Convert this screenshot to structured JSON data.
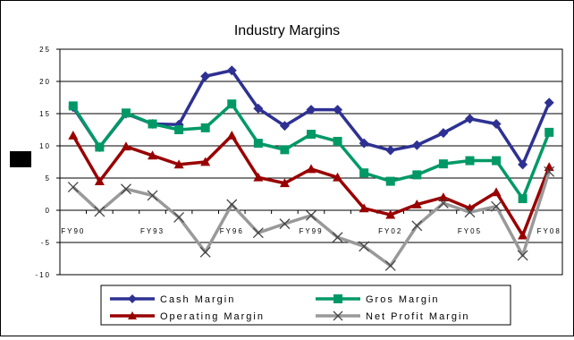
{
  "chart_data": {
    "type": "line",
    "title": "Industry Margins",
    "x": [
      "FY90",
      "FY91",
      "FY92",
      "FY93",
      "FY94",
      "FY95",
      "FY96",
      "FY97",
      "FY98",
      "FY99",
      "FY00",
      "FY01",
      "FY02",
      "FY03",
      "FY04",
      "FY05",
      "FY06",
      "FY07",
      "FY08"
    ],
    "x_tick_labels": [
      "FY90",
      "FY93",
      "FY96",
      "FY99",
      "FY02",
      "FY05",
      "FY08"
    ],
    "ylim": [
      -10,
      25
    ],
    "y_ticks": [
      "-10",
      "-5",
      "0",
      "5",
      "10",
      "15",
      "20",
      "25"
    ],
    "grid": "horizontal",
    "legend_placement": "bottom",
    "series": [
      {
        "name": "Cash Margin",
        "color": "#2e3192",
        "marker": "diamond",
        "values": [
          16.0,
          9.8,
          15.0,
          13.4,
          13.3,
          20.8,
          21.7,
          15.8,
          13.1,
          15.6,
          15.6,
          10.4,
          9.3,
          10.1,
          12.0,
          14.2,
          13.4,
          7.1,
          16.7
        ]
      },
      {
        "name": "Gros Margin",
        "color": "#009966",
        "marker": "square",
        "values": [
          16.2,
          9.8,
          15.1,
          13.4,
          12.5,
          12.8,
          16.5,
          10.4,
          9.4,
          11.8,
          10.7,
          5.8,
          4.5,
          5.5,
          7.2,
          7.7,
          7.7,
          1.8,
          12.1
        ]
      },
      {
        "name": "Operating Margin",
        "color": "#990000",
        "marker": "triangle",
        "values": [
          11.6,
          4.5,
          9.9,
          8.5,
          7.1,
          7.5,
          11.6,
          5.1,
          4.2,
          6.4,
          5.1,
          0.3,
          -0.7,
          0.9,
          2.0,
          0.3,
          2.8,
          -3.9,
          6.7
        ]
      },
      {
        "name": "Net Profit Margin",
        "color": "#999999",
        "marker": "x",
        "values": [
          3.6,
          -0.2,
          3.3,
          2.3,
          -1.1,
          -6.5,
          0.9,
          -3.5,
          -2.1,
          -0.8,
          -4.2,
          -5.6,
          -8.6,
          -2.4,
          1.1,
          -0.3,
          0.6,
          -7.0,
          6.0
        ]
      }
    ]
  }
}
